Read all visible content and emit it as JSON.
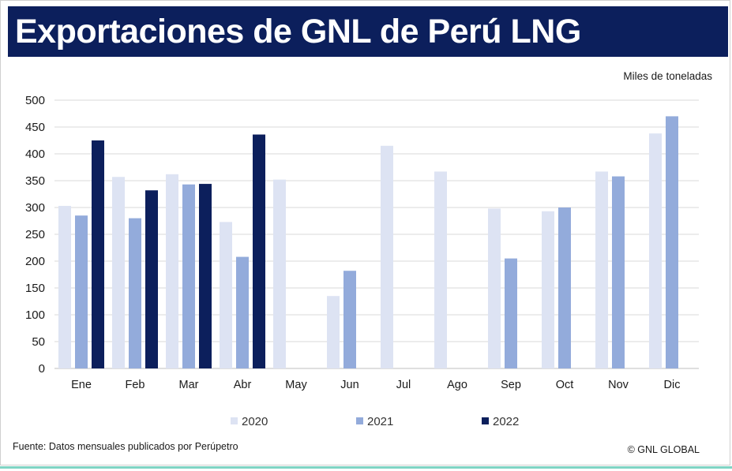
{
  "header": {
    "title": "Exportaciones de GNL de Perú LNG"
  },
  "units_label": "Miles de toneladas",
  "footer": {
    "source": "Fuente: Datos mensuales publicados por Perúpetro",
    "copyright": "© GNL GLOBAL"
  },
  "colors": {
    "title_bg": "#0c1f5c",
    "s2020": "#dde3f3",
    "s2021": "#93abdb",
    "s2022": "#0c1f5c",
    "grid": "#d9d9d9"
  },
  "chart_data": {
    "type": "bar",
    "title": "Exportaciones de GNL de Perú LNG",
    "ylabel": "Miles de toneladas",
    "xlabel": "",
    "ylim": [
      0,
      500
    ],
    "yticks": [
      0,
      50,
      100,
      150,
      200,
      250,
      300,
      350,
      400,
      450,
      500
    ],
    "grid": true,
    "legend": "bottom",
    "categories": [
      "Ene",
      "Feb",
      "Mar",
      "Abr",
      "May",
      "Jun",
      "Jul",
      "Ago",
      "Sep",
      "Oct",
      "Nov",
      "Dic"
    ],
    "series": [
      {
        "name": "2020",
        "color": "#dde3f3",
        "values": [
          303,
          357,
          362,
          273,
          352,
          135,
          415,
          367,
          298,
          293,
          367,
          438
        ]
      },
      {
        "name": "2021",
        "color": "#93abdb",
        "values": [
          285,
          280,
          343,
          208,
          null,
          182,
          null,
          null,
          205,
          300,
          358,
          470
        ]
      },
      {
        "name": "2022",
        "color": "#0c1f5c",
        "values": [
          425,
          332,
          344,
          436,
          null,
          null,
          null,
          null,
          null,
          null,
          null,
          null
        ]
      }
    ]
  }
}
